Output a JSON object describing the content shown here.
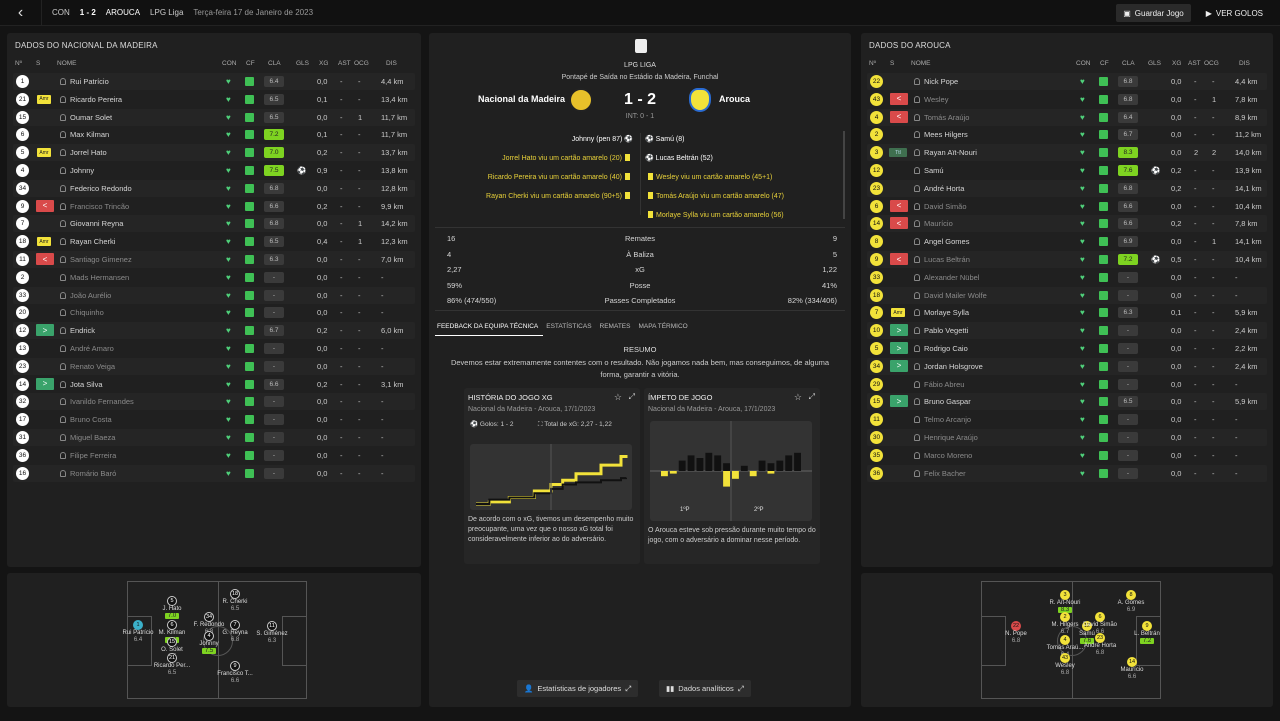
{
  "topbar": {
    "competition_short": "CON",
    "score": "1 - 2",
    "away": "AROUCA",
    "league": "LPG Liga",
    "date": "Terça-feira 17 de Janeiro de 2023",
    "save_label": "Guardar Jogo",
    "goals_label": "VER GOLOS"
  },
  "columns": {
    "num": "Nº",
    "s": "S",
    "name": "NOME",
    "con": "CON",
    "cf": "CF",
    "cla": "CLA",
    "gls": "GLS",
    "xg": "XG",
    "ast": "AST",
    "ocg": "OCG",
    "dis": "DIS"
  },
  "home": {
    "title": "DADOS DO NACIONAL DA MADEIRA",
    "players": [
      {
        "n": "1",
        "s": "",
        "name": "Rui Patrício",
        "cla": "6.4",
        "g": false,
        "gls": "",
        "xg": "0,0",
        "ast": "-",
        "ocg": "-",
        "dis": "4,4 km",
        "dim": false
      },
      {
        "n": "21",
        "s": "Amr",
        "name": "Ricardo Pereira",
        "cla": "6.5",
        "g": false,
        "gls": "",
        "xg": "0,1",
        "ast": "-",
        "ocg": "-",
        "dis": "13,4 km",
        "dim": false
      },
      {
        "n": "15",
        "s": "",
        "name": "Oumar Solet",
        "cla": "6.5",
        "g": false,
        "gls": "",
        "xg": "0,0",
        "ast": "-",
        "ocg": "1",
        "dis": "11,7 km",
        "dim": false
      },
      {
        "n": "6",
        "s": "",
        "name": "Max Kilman",
        "cla": "7.2",
        "g": true,
        "gls": "",
        "xg": "0,1",
        "ast": "-",
        "ocg": "-",
        "dis": "11,7 km",
        "dim": false
      },
      {
        "n": "5",
        "s": "Amr",
        "name": "Jorrel Hato",
        "cla": "7.0",
        "g": true,
        "gls": "",
        "xg": "0,2",
        "ast": "-",
        "ocg": "-",
        "dis": "13,7 km",
        "dim": false
      },
      {
        "n": "4",
        "s": "",
        "name": "Johnny",
        "cla": "7.5",
        "g": true,
        "gls": "⚽",
        "xg": "0,9",
        "ast": "-",
        "ocg": "-",
        "dis": "13,8 km",
        "dim": false
      },
      {
        "n": "34",
        "s": "",
        "name": "Federico Redondo",
        "cla": "6.8",
        "g": false,
        "gls": "",
        "xg": "0,0",
        "ast": "-",
        "ocg": "-",
        "dis": "12,8 km",
        "dim": false
      },
      {
        "n": "9",
        "s": "<",
        "name": "Francisco Trincão",
        "cla": "6.6",
        "g": false,
        "gls": "",
        "xg": "0,2",
        "ast": "-",
        "ocg": "-",
        "dis": "9,9 km",
        "dim": true
      },
      {
        "n": "7",
        "s": "",
        "name": "Giovanni Reyna",
        "cla": "6.8",
        "g": false,
        "gls": "",
        "xg": "0,0",
        "ast": "-",
        "ocg": "1",
        "dis": "14,2 km",
        "dim": false
      },
      {
        "n": "18",
        "s": "Amr",
        "name": "Rayan Cherki",
        "cla": "6.5",
        "g": false,
        "gls": "",
        "xg": "0,4",
        "ast": "-",
        "ocg": "1",
        "dis": "12,3 km",
        "dim": false
      },
      {
        "n": "11",
        "s": "<",
        "name": "Santiago Gimenez",
        "cla": "6.3",
        "g": false,
        "gls": "",
        "xg": "0,0",
        "ast": "-",
        "ocg": "-",
        "dis": "7,0 km",
        "dim": true
      },
      {
        "n": "2",
        "s": "",
        "name": "Mads Hermansen",
        "cla": "-",
        "g": false,
        "gls": "",
        "xg": "0,0",
        "ast": "-",
        "ocg": "-",
        "dis": "-",
        "dim": true
      },
      {
        "n": "33",
        "s": "",
        "name": "João Aurélio",
        "cla": "-",
        "g": false,
        "gls": "",
        "xg": "0,0",
        "ast": "-",
        "ocg": "-",
        "dis": "-",
        "dim": true
      },
      {
        "n": "20",
        "s": "",
        "name": "Chiquinho",
        "cla": "-",
        "g": false,
        "gls": "",
        "xg": "0,0",
        "ast": "-",
        "ocg": "-",
        "dis": "-",
        "dim": true
      },
      {
        "n": "12",
        "s": ">",
        "name": "Endrick",
        "cla": "6.7",
        "g": false,
        "gls": "",
        "xg": "0,2",
        "ast": "-",
        "ocg": "-",
        "dis": "6,0 km",
        "dim": false
      },
      {
        "n": "13",
        "s": "",
        "name": "André Amaro",
        "cla": "-",
        "g": false,
        "gls": "",
        "xg": "0,0",
        "ast": "-",
        "ocg": "-",
        "dis": "-",
        "dim": true
      },
      {
        "n": "23",
        "s": "",
        "name": "Renato Veiga",
        "cla": "-",
        "g": false,
        "gls": "",
        "xg": "0,0",
        "ast": "-",
        "ocg": "-",
        "dis": "-",
        "dim": true
      },
      {
        "n": "14",
        "s": ">",
        "name": "Jota Silva",
        "cla": "6.6",
        "g": false,
        "gls": "",
        "xg": "0,2",
        "ast": "-",
        "ocg": "-",
        "dis": "3,1 km",
        "dim": false
      },
      {
        "n": "32",
        "s": "",
        "name": "Ivanildo Fernandes",
        "cla": "-",
        "g": false,
        "gls": "",
        "xg": "0,0",
        "ast": "-",
        "ocg": "-",
        "dis": "-",
        "dim": true
      },
      {
        "n": "17",
        "s": "",
        "name": "Bruno Costa",
        "cla": "-",
        "g": false,
        "gls": "",
        "xg": "0,0",
        "ast": "-",
        "ocg": "-",
        "dis": "-",
        "dim": true
      },
      {
        "n": "31",
        "s": "",
        "name": "Miguel Baeza",
        "cla": "-",
        "g": false,
        "gls": "",
        "xg": "0,0",
        "ast": "-",
        "ocg": "-",
        "dis": "-",
        "dim": true
      },
      {
        "n": "36",
        "s": "",
        "name": "Filipe Ferreira",
        "cla": "-",
        "g": false,
        "gls": "",
        "xg": "0,0",
        "ast": "-",
        "ocg": "-",
        "dis": "-",
        "dim": true
      },
      {
        "n": "16",
        "s": "",
        "name": "Romário Baró",
        "cla": "-",
        "g": false,
        "gls": "",
        "xg": "0,0",
        "ast": "-",
        "ocg": "-",
        "dis": "-",
        "dim": true
      }
    ]
  },
  "away": {
    "title": "DADOS DO AROUCA",
    "players": [
      {
        "n": "22",
        "s": "",
        "name": "Nick Pope",
        "cla": "6.8",
        "g": false,
        "gls": "",
        "xg": "0,0",
        "ast": "-",
        "ocg": "-",
        "dis": "4,4 km",
        "dim": false
      },
      {
        "n": "43",
        "s": "<",
        "name": "Wesley",
        "cla": "6.8",
        "g": false,
        "gls": "",
        "xg": "0,0",
        "ast": "-",
        "ocg": "1",
        "dis": "7,8 km",
        "dim": true
      },
      {
        "n": "4",
        "s": "<",
        "name": "Tomás Araújo",
        "cla": "6.4",
        "g": false,
        "gls": "",
        "xg": "0,0",
        "ast": "-",
        "ocg": "-",
        "dis": "8,9 km",
        "dim": true
      },
      {
        "n": "2",
        "s": "",
        "name": "Mees Hilgers",
        "cla": "6.7",
        "g": false,
        "gls": "",
        "xg": "0,0",
        "ast": "-",
        "ocg": "-",
        "dis": "11,2 km",
        "dim": false
      },
      {
        "n": "3",
        "s": "Ttl",
        "name": "Rayan Aït-Nouri",
        "cla": "8.3",
        "g": true,
        "gls": "",
        "xg": "0,0",
        "ast": "2",
        "ocg": "2",
        "dis": "14,0 km",
        "dim": false
      },
      {
        "n": "12",
        "s": "",
        "name": "Samú",
        "cla": "7.6",
        "g": true,
        "gls": "⚽",
        "xg": "0,2",
        "ast": "-",
        "ocg": "-",
        "dis": "13,9 km",
        "dim": false
      },
      {
        "n": "23",
        "s": "",
        "name": "André Horta",
        "cla": "6.8",
        "g": false,
        "gls": "",
        "xg": "0,2",
        "ast": "-",
        "ocg": "-",
        "dis": "14,1 km",
        "dim": false
      },
      {
        "n": "6",
        "s": "<",
        "name": "David Simão",
        "cla": "6.6",
        "g": false,
        "gls": "",
        "xg": "0,0",
        "ast": "-",
        "ocg": "-",
        "dis": "10,4 km",
        "dim": true
      },
      {
        "n": "14",
        "s": "<",
        "name": "Maurício",
        "cla": "6.6",
        "g": false,
        "gls": "",
        "xg": "0,2",
        "ast": "-",
        "ocg": "-",
        "dis": "7,8 km",
        "dim": true
      },
      {
        "n": "8",
        "s": "",
        "name": "Angel Gomes",
        "cla": "6.9",
        "g": false,
        "gls": "",
        "xg": "0,0",
        "ast": "-",
        "ocg": "1",
        "dis": "14,1 km",
        "dim": false
      },
      {
        "n": "9",
        "s": "<",
        "name": "Lucas Beltrán",
        "cla": "7.2",
        "g": true,
        "gls": "⚽",
        "xg": "0,5",
        "ast": "-",
        "ocg": "-",
        "dis": "10,4 km",
        "dim": true
      },
      {
        "n": "33",
        "s": "",
        "name": "Alexander Nübel",
        "cla": "-",
        "g": false,
        "gls": "",
        "xg": "0,0",
        "ast": "-",
        "ocg": "-",
        "dis": "-",
        "dim": true
      },
      {
        "n": "18",
        "s": "",
        "name": "David Mailer Wolfe",
        "cla": "-",
        "g": false,
        "gls": "",
        "xg": "0,0",
        "ast": "-",
        "ocg": "-",
        "dis": "-",
        "dim": true
      },
      {
        "n": "7",
        "s": "Amr",
        "name": "Morlaye Sylla",
        "cla": "6.3",
        "g": false,
        "gls": "",
        "xg": "0,1",
        "ast": "-",
        "ocg": "-",
        "dis": "5,9 km",
        "dim": false
      },
      {
        "n": "10",
        "s": ">",
        "name": "Pablo Vegetti",
        "cla": "-",
        "g": false,
        "gls": "",
        "xg": "0,0",
        "ast": "-",
        "ocg": "-",
        "dis": "2,4 km",
        "dim": false
      },
      {
        "n": "5",
        "s": ">",
        "name": "Rodrigo Caio",
        "cla": "-",
        "g": false,
        "gls": "",
        "xg": "0,0",
        "ast": "-",
        "ocg": "-",
        "dis": "2,2 km",
        "dim": false
      },
      {
        "n": "34",
        "s": ">",
        "name": "Jordan Holsgrove",
        "cla": "-",
        "g": false,
        "gls": "",
        "xg": "0,0",
        "ast": "-",
        "ocg": "-",
        "dis": "2,4 km",
        "dim": false
      },
      {
        "n": "29",
        "s": "",
        "name": "Fábio Abreu",
        "cla": "-",
        "g": false,
        "gls": "",
        "xg": "0,0",
        "ast": "-",
        "ocg": "-",
        "dis": "-",
        "dim": true
      },
      {
        "n": "15",
        "s": ">",
        "name": "Bruno Gaspar",
        "cla": "6.5",
        "g": false,
        "gls": "",
        "xg": "0,0",
        "ast": "-",
        "ocg": "-",
        "dis": "5,9 km",
        "dim": false
      },
      {
        "n": "11",
        "s": "",
        "name": "Telmo Arcanjo",
        "cla": "-",
        "g": false,
        "gls": "",
        "xg": "0,0",
        "ast": "-",
        "ocg": "-",
        "dis": "-",
        "dim": true
      },
      {
        "n": "30",
        "s": "",
        "name": "Henrique Araújo",
        "cla": "-",
        "g": false,
        "gls": "",
        "xg": "0,0",
        "ast": "-",
        "ocg": "-",
        "dis": "-",
        "dim": true
      },
      {
        "n": "35",
        "s": "",
        "name": "Marco Moreno",
        "cla": "-",
        "g": false,
        "gls": "",
        "xg": "0,0",
        "ast": "-",
        "ocg": "-",
        "dis": "-",
        "dim": true
      },
      {
        "n": "36",
        "s": "",
        "name": "Felix Bacher",
        "cla": "-",
        "g": false,
        "gls": "",
        "xg": "0,0",
        "ast": "-",
        "ocg": "-",
        "dis": "-",
        "dim": true
      }
    ]
  },
  "match": {
    "league": "LPG LIGA",
    "kickoff": "Pontapé de Saída no Estádio da Madeira, Funchal",
    "home": "Nacional da Madeira",
    "away": "Arouca",
    "score": "1 - 2",
    "ht": "INT: 0 - 1",
    "home_events": [
      "Johnny (pen 87)",
      "Jorrel Hato viu um cartão amarelo (20)",
      "Ricardo Pereira viu um cartão amarelo (40)",
      "Rayan Cherki viu um cartão amarelo (90+5)"
    ],
    "away_events": [
      "Samú (8)",
      "Lucas Beltrán (52)",
      "Wesley viu um cartão amarelo (45+1)",
      "Tomás Araújo viu um cartão amarelo (47)",
      "Morlaye Sylla viu um cartão amarelo (56)"
    ]
  },
  "stats": [
    {
      "h": "16",
      "label": "Remates",
      "a": "9"
    },
    {
      "h": "4",
      "label": "À Baliza",
      "a": "5"
    },
    {
      "h": "2,27",
      "label": "xG",
      "a": "1,22"
    },
    {
      "h": "59%",
      "label": "Posse",
      "a": "41%"
    },
    {
      "h": "86% (474/550)",
      "label": "Passes Completados",
      "a": "82% (334/406)"
    }
  ],
  "tabs": [
    "FEEDBACK DA EQUIPA TÉCNICA",
    "ESTATÍSTICAS",
    "REMATES",
    "MAPA TÉRMICO"
  ],
  "summary": {
    "title": "RESUMO",
    "text": "Devemos estar extremamente contentes com o resultado. Não jogamos nada bem, mas conseguimos, de alguma forma, garantir a vitória."
  },
  "xg_card": {
    "title": "HISTÓRIA DO JOGO XG",
    "sub": "Nacional da Madeira - Arouca, 17/1/2023",
    "goals": "Golos: 1 - 2",
    "total": "Total de xG: 2,27 - 1,22",
    "desc": "De acordo com o xG, tivemos um desempenho muito preocupante, uma vez que o nosso xG total foi consideravelmente inferior ao do adversário."
  },
  "mom_card": {
    "title": "ÍMPETO DE JOGO",
    "sub": "Nacional da Madeira - Arouca, 17/1/2023",
    "h1": "1ºP",
    "h2": "2ºP",
    "desc": "O Arouca esteve sob pressão durante muito tempo do jogo, com o adversário a dominar nesse período."
  },
  "chart_data": [
    {
      "type": "line",
      "title": "HISTÓRIA DO JOGO XG",
      "x": [
        0,
        8,
        20,
        35,
        45,
        52,
        60,
        75,
        87,
        90
      ],
      "series": [
        {
          "values": [
            0,
            0.1,
            0.3,
            0.6,
            0.9,
            1.1,
            1.4,
            1.8,
            2.2,
            2.27
          ]
        },
        {
          "values": [
            0,
            0.2,
            0.3,
            0.5,
            0.7,
            0.9,
            1.0,
            1.1,
            1.2,
            1.22
          ]
        }
      ]
    },
    {
      "type": "bar",
      "title": "ÍMPETO DE JOGO",
      "categories": [
        "1",
        "2",
        "3",
        "4",
        "5",
        "6",
        "7",
        "8",
        "9",
        "10",
        "11",
        "12",
        "13",
        "14",
        "15",
        "16"
      ],
      "series": [
        {
          "values": [
            0,
            0,
            4,
            6,
            5,
            7,
            6,
            3,
            0,
            2,
            0,
            4,
            3,
            4,
            6,
            7
          ]
        },
        {
          "values": [
            2,
            1,
            0,
            0,
            0,
            0,
            0,
            6,
            3,
            0,
            2,
            0,
            1,
            0,
            0,
            0
          ]
        }
      ]
    }
  ],
  "buttons": {
    "player_stats": "Estatísticas de jogadores",
    "analytics": "Dados analíticos"
  },
  "home_pitch": [
    {
      "n": "1",
      "name": "Rui Patrício",
      "r": "6.4",
      "g": false,
      "c": "#3bb0c9"
    },
    {
      "n": "5",
      "name": "J. Hato",
      "r": "7.0",
      "g": true,
      "c": ""
    },
    {
      "n": "6",
      "name": "M. Kilman",
      "r": "7.2",
      "g": true,
      "c": ""
    },
    {
      "n": "15",
      "name": "O. Solet",
      "r": "6.5",
      "g": false,
      "c": ""
    },
    {
      "n": "21",
      "name": "Ricardo Per...",
      "r": "6.5",
      "g": false,
      "c": ""
    },
    {
      "n": "34",
      "name": "F. Redondo",
      "r": "6.8",
      "g": false,
      "c": ""
    },
    {
      "n": "4",
      "name": "Johnny",
      "r": "7.5",
      "g": true,
      "c": ""
    },
    {
      "n": "18",
      "name": "R. Cherki",
      "r": "6.5",
      "g": false,
      "c": ""
    },
    {
      "n": "7",
      "name": "G. Reyna",
      "r": "6.8",
      "g": false,
      "c": ""
    },
    {
      "n": "9",
      "name": "Francisco T...",
      "r": "6.6",
      "g": false,
      "c": ""
    },
    {
      "n": "11",
      "name": "S. Giménez",
      "r": "6.3",
      "g": false,
      "c": ""
    }
  ],
  "away_pitch": [
    {
      "n": "22",
      "name": "N. Pope",
      "r": "6.8",
      "g": false,
      "c": "#d94a4a"
    },
    {
      "n": "3",
      "name": "R. Aït-Nouri",
      "r": "8.3",
      "g": true,
      "c": "#f2e23a"
    },
    {
      "n": "2",
      "name": "M. Hilgers",
      "r": "6.7",
      "g": false,
      "c": "#f2e23a"
    },
    {
      "n": "4",
      "name": "Tomás Araú...",
      "r": "6.4",
      "g": false,
      "c": "#f2e23a"
    },
    {
      "n": "43",
      "name": "Wesley",
      "r": "6.8",
      "g": false,
      "c": "#f2e23a"
    },
    {
      "n": "12",
      "name": "Samú",
      "r": "7.6",
      "g": true,
      "c": "#f2e23a"
    },
    {
      "n": "6",
      "name": "David Simão",
      "r": "6.6",
      "g": false,
      "c": "#f2e23a"
    },
    {
      "n": "23",
      "name": "André Horta",
      "r": "6.8",
      "g": false,
      "c": "#f2e23a"
    },
    {
      "n": "8",
      "name": "A. Gomes",
      "r": "6.9",
      "g": false,
      "c": "#f2e23a"
    },
    {
      "n": "9",
      "name": "L. Beltrán",
      "r": "7.2",
      "g": true,
      "c": "#f2e23a"
    },
    {
      "n": "14",
      "name": "Maurício",
      "r": "6.6",
      "g": false,
      "c": "#f2e23a"
    }
  ]
}
